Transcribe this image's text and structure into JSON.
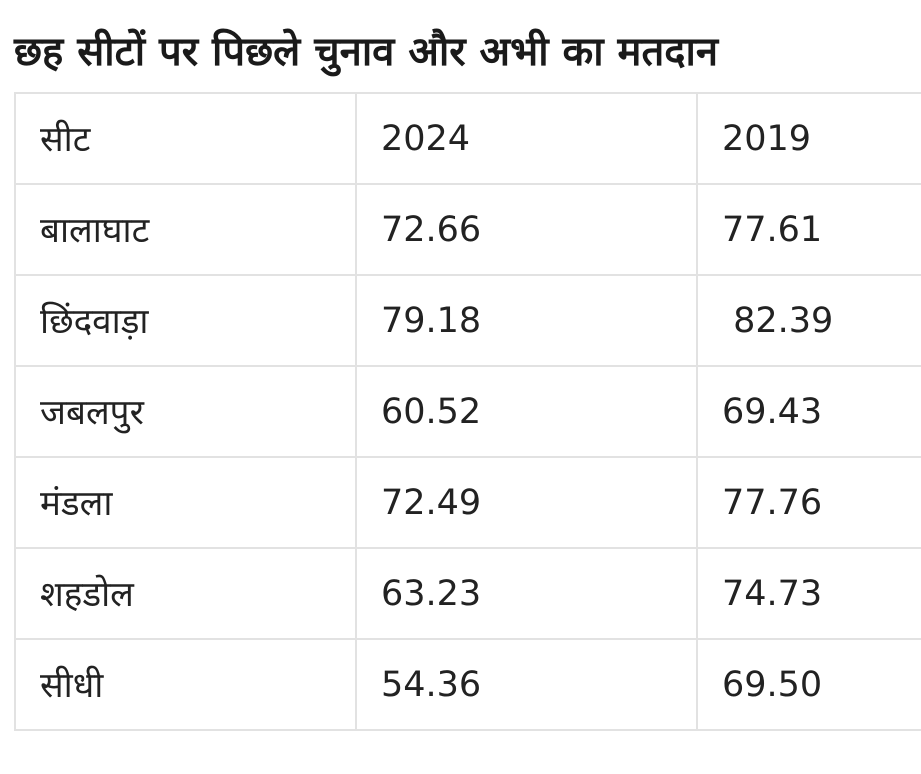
{
  "title": "छह सीटों पर पिछले चुनाव और अभी का मतदान",
  "table": {
    "headers": [
      "सीट",
      "2024",
      "2019"
    ],
    "rows": [
      [
        "बालाघाट",
        "72.66",
        "77.61"
      ],
      [
        "छिंदवाड़ा",
        "79.18",
        " 82.39"
      ],
      [
        "जबलपुर",
        "60.52",
        "69.43"
      ],
      [
        "मंडला",
        "72.49",
        "77.76"
      ],
      [
        "शहडोल",
        "63.23",
        "74.73"
      ],
      [
        "सीधी",
        "54.36",
        "69.50"
      ]
    ]
  }
}
